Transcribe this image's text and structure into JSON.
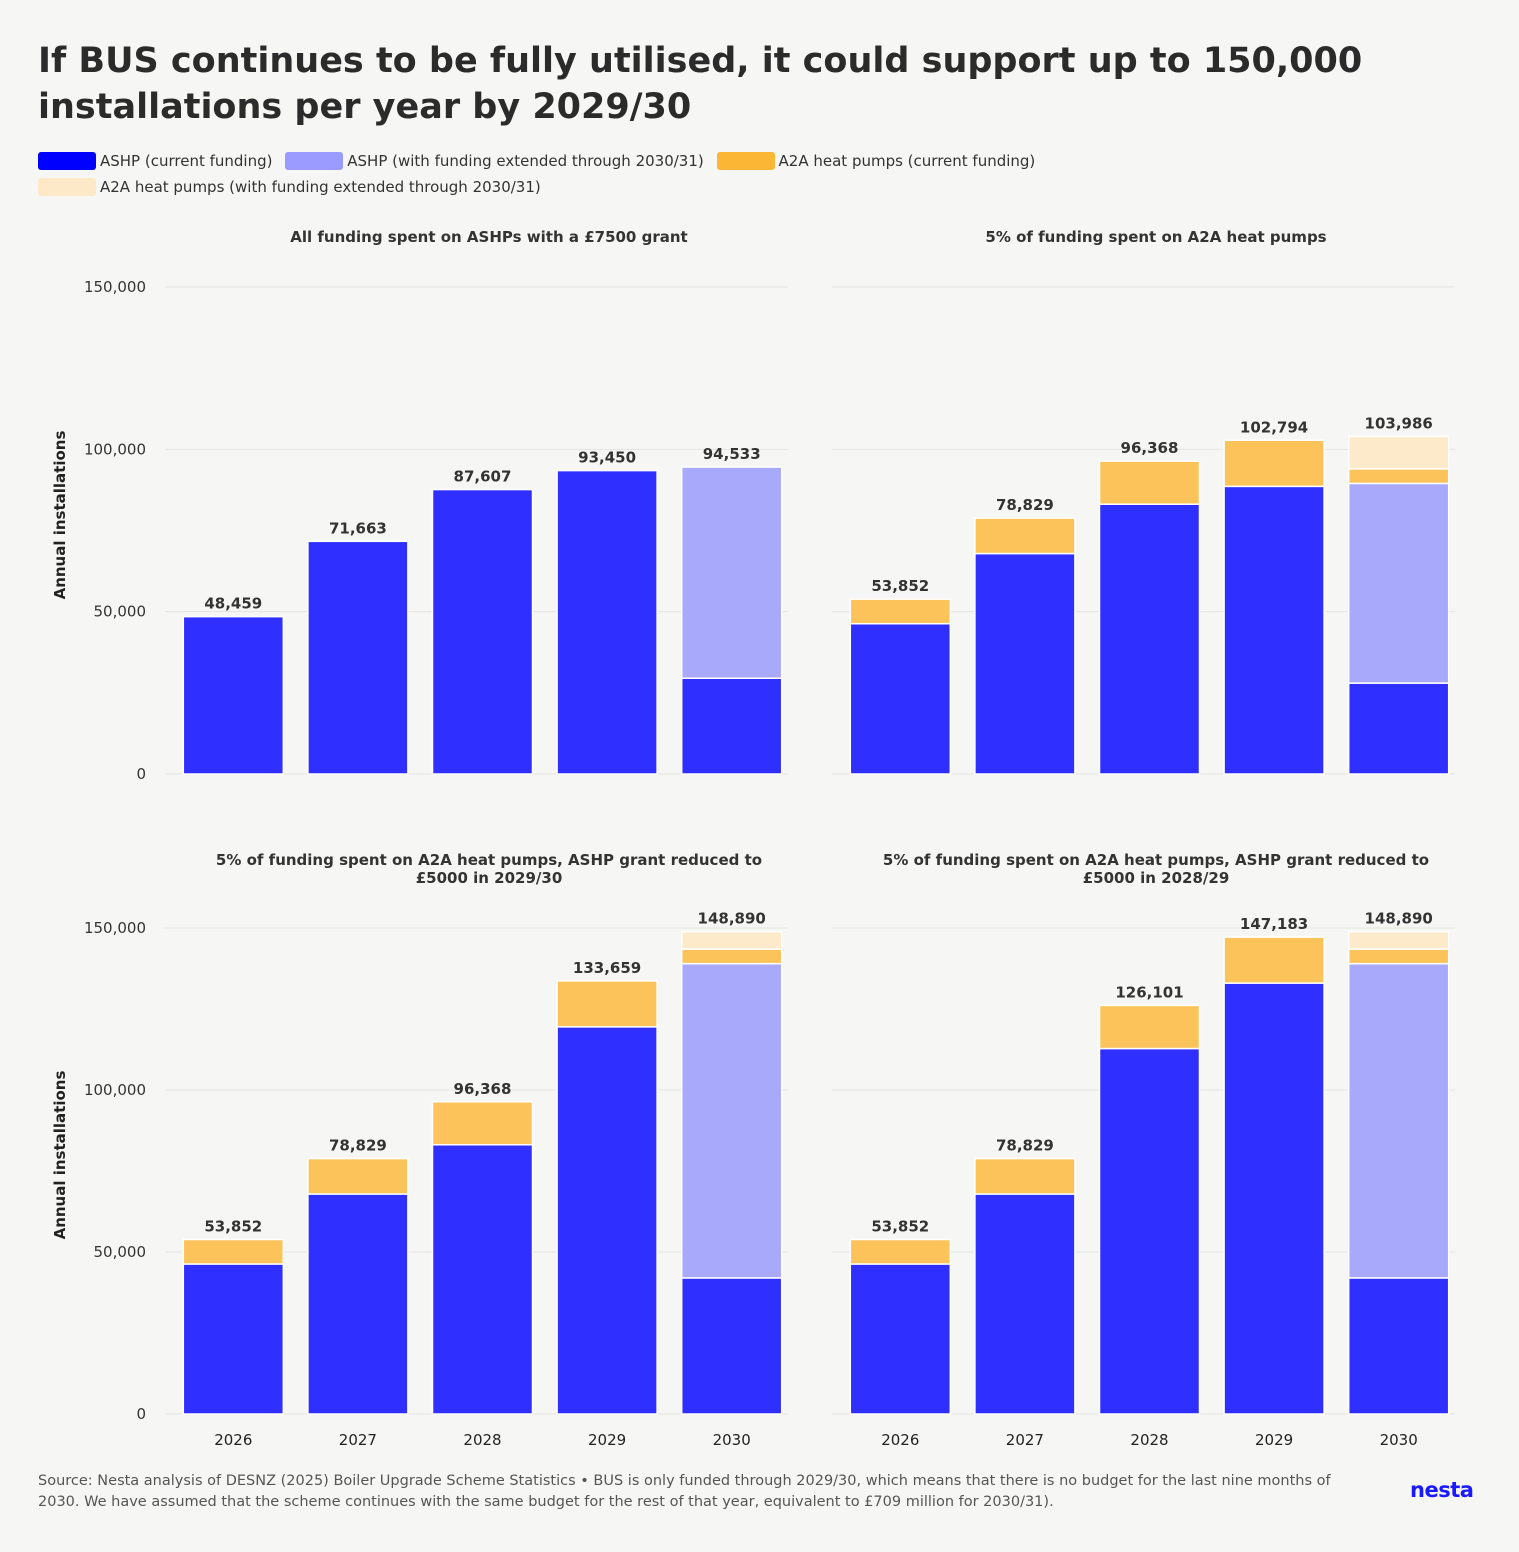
{
  "title": "If BUS continues to be fully utilised, it could support up to 150,000 installations per year by 2029/30",
  "legend": [
    {
      "label": "ASHP (current funding)",
      "color": "#0000ff"
    },
    {
      "label": "ASHP (with funding extended through 2030/31)",
      "color": "#9b9bff"
    },
    {
      "label": "A2A heat pumps (current funding)",
      "color": "#fbb636"
    },
    {
      "label": "A2A heat pumps (with funding extended through 2030/31)",
      "color": "#fde9c8"
    }
  ],
  "colors": {
    "ashp_current": "#2f2fff",
    "ashp_extended": "#a9a9fc",
    "a2a_current": "#fbc35a",
    "a2a_extended": "#fdeacb",
    "grid": "#e3e4e1"
  },
  "chart_data": [
    {
      "type": "bar",
      "stacked": true,
      "title": "All funding spent on ASHPs with a £7500 grant",
      "ylabel": "Annual installations",
      "ylim": [
        0,
        150000
      ],
      "yticks": [
        "0",
        "50,000",
        "100,000",
        "150,000"
      ],
      "categories": [
        "2026",
        "2027",
        "2028",
        "2029",
        "2030"
      ],
      "series": [
        {
          "name": "ASHP (current funding)",
          "values": [
            48459,
            71663,
            87607,
            93450,
            29500
          ]
        },
        {
          "name": "ASHP (with funding extended through 2030/31)",
          "values": [
            0,
            0,
            0,
            0,
            65033
          ]
        },
        {
          "name": "A2A heat pumps (current funding)",
          "values": [
            0,
            0,
            0,
            0,
            0
          ]
        },
        {
          "name": "A2A heat pumps (with funding extended through 2030/31)",
          "values": [
            0,
            0,
            0,
            0,
            0
          ]
        }
      ],
      "totals": [
        "48,459",
        "71,663",
        "87,607",
        "93,450",
        "94,533"
      ]
    },
    {
      "type": "bar",
      "stacked": true,
      "title": "5% of funding spent on A2A heat pumps",
      "ylabel": "",
      "ylim": [
        0,
        150000
      ],
      "yticks": [],
      "categories": [
        "2026",
        "2027",
        "2028",
        "2029",
        "2030"
      ],
      "series": [
        {
          "name": "ASHP (current funding)",
          "values": [
            46300,
            67900,
            83100,
            88600,
            28000
          ]
        },
        {
          "name": "ASHP (with funding extended through 2030/31)",
          "values": [
            0,
            0,
            0,
            0,
            61500
          ]
        },
        {
          "name": "A2A heat pumps (current funding)",
          "values": [
            7552,
            10929,
            13268,
            14194,
            4500
          ]
        },
        {
          "name": "A2A heat pumps (with funding extended through 2030/31)",
          "values": [
            0,
            0,
            0,
            0,
            9986
          ]
        }
      ],
      "totals": [
        "53,852",
        "78,829",
        "96,368",
        "102,794",
        "103,986"
      ]
    },
    {
      "type": "bar",
      "stacked": true,
      "title": "5% of funding spent on A2A heat pumps, ASHP grant reduced to £5000 in 2029/30",
      "ylabel": "Annual installations",
      "ylim": [
        0,
        150000
      ],
      "yticks": [
        "0",
        "50,000",
        "100,000",
        "150,000"
      ],
      "categories": [
        "2026",
        "2027",
        "2028",
        "2029",
        "2030"
      ],
      "series": [
        {
          "name": "ASHP (current funding)",
          "values": [
            46300,
            67900,
            83100,
            119500,
            42000
          ]
        },
        {
          "name": "ASHP (with funding extended through 2030/31)",
          "values": [
            0,
            0,
            0,
            0,
            97000
          ]
        },
        {
          "name": "A2A heat pumps (current funding)",
          "values": [
            7552,
            10929,
            13268,
            14159,
            4500
          ]
        },
        {
          "name": "A2A heat pumps (with funding extended through 2030/31)",
          "values": [
            0,
            0,
            0,
            0,
            5390
          ]
        }
      ],
      "totals": [
        "53,852",
        "78,829",
        "96,368",
        "133,659",
        "148,890"
      ]
    },
    {
      "type": "bar",
      "stacked": true,
      "title": "5% of funding spent on A2A heat pumps, ASHP grant reduced to £5000 in 2028/29",
      "ylabel": "",
      "ylim": [
        0,
        150000
      ],
      "yticks": [],
      "categories": [
        "2026",
        "2027",
        "2028",
        "2029",
        "2030"
      ],
      "series": [
        {
          "name": "ASHP (current funding)",
          "values": [
            46300,
            67900,
            112800,
            133000,
            42000
          ]
        },
        {
          "name": "ASHP (with funding extended through 2030/31)",
          "values": [
            0,
            0,
            0,
            0,
            97000
          ]
        },
        {
          "name": "A2A heat pumps (current funding)",
          "values": [
            7552,
            10929,
            13301,
            14183,
            4500
          ]
        },
        {
          "name": "A2A heat pumps (with funding extended through 2030/31)",
          "values": [
            0,
            0,
            0,
            0,
            5390
          ]
        }
      ],
      "totals": [
        "53,852",
        "78,829",
        "126,101",
        "147,183",
        "148,890"
      ]
    }
  ],
  "footnote": "Source: Nesta analysis of DESNZ (2025) Boiler Upgrade Scheme Statistics • BUS is only funded through 2029/30, which means that there is no budget for the last nine months of 2030. We have assumed that the scheme continues with the same budget for the rest of that year, equivalent to £709 million for 2030/31).",
  "logo": "nesta"
}
